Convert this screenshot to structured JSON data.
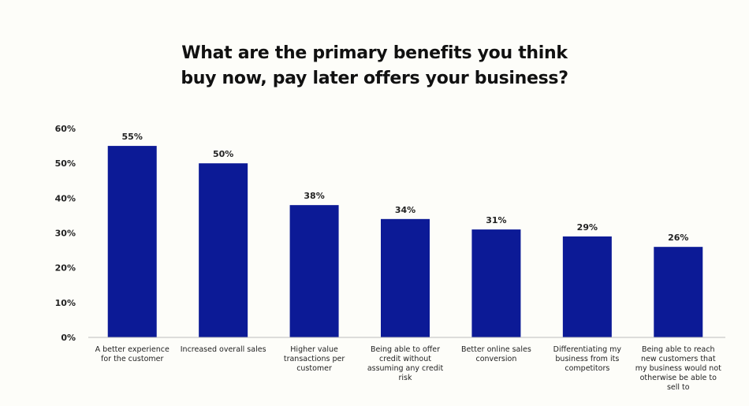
{
  "chart_data": {
    "type": "bar",
    "title": "What are the primary benefits you think buy now, pay later offers your business?",
    "categories": [
      "A better experience for the customer",
      "Increased overall sales",
      "Higher value transactions per customer",
      "Being able to offer credit without assuming any credit risk",
      "Better online sales conversion",
      "Differentiating my business from its competitors",
      "Being able to reach new customers that my business would not otherwise be able to sell to"
    ],
    "values": [
      55,
      50,
      38,
      34,
      31,
      29,
      26
    ],
    "value_labels": [
      "55%",
      "50%",
      "38%",
      "34%",
      "31%",
      "29%",
      "26%"
    ],
    "bar_color": "#0c1a96",
    "ylim": [
      0,
      60
    ],
    "y_ticks": [
      0,
      10,
      20,
      30,
      40,
      50,
      60
    ],
    "y_tick_labels": [
      "0%",
      "10%",
      "20%",
      "30%",
      "40%",
      "50%",
      "60%"
    ],
    "grid": false,
    "legend": "none"
  }
}
